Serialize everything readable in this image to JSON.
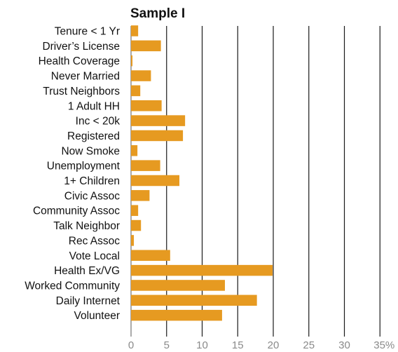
{
  "chart_data": {
    "type": "bar",
    "orientation": "horizontal",
    "title": "Sample I",
    "xlabel": "",
    "ylabel": "",
    "categories": [
      "Tenure < 1 Yr",
      "Driver’s License",
      "Health Coverage",
      "Never Married",
      "Trust Neighbors",
      "1 Adult HH",
      "Inc < 20k",
      "Registered",
      "Now Smoke",
      "Unemployment",
      "1+ Children",
      "Civic Assoc",
      "Community Assoc",
      "Talk Neighbor",
      "Rec Assoc",
      "Vote Local",
      "Health Ex/VG",
      "Worked Community",
      "Daily Internet",
      "Volunteer"
    ],
    "values": [
      1.0,
      4.2,
      0.2,
      2.8,
      1.3,
      4.3,
      7.6,
      7.3,
      0.9,
      4.1,
      6.8,
      2.6,
      1.0,
      1.4,
      0.4,
      5.5,
      19.9,
      13.2,
      17.7,
      12.8
    ],
    "xlim": [
      0,
      35
    ],
    "xticks": [
      "0",
      "5",
      "10",
      "15",
      "20",
      "25",
      "30",
      "35%"
    ],
    "grid": true,
    "legend": "none",
    "bar_color": "#e69a21"
  }
}
